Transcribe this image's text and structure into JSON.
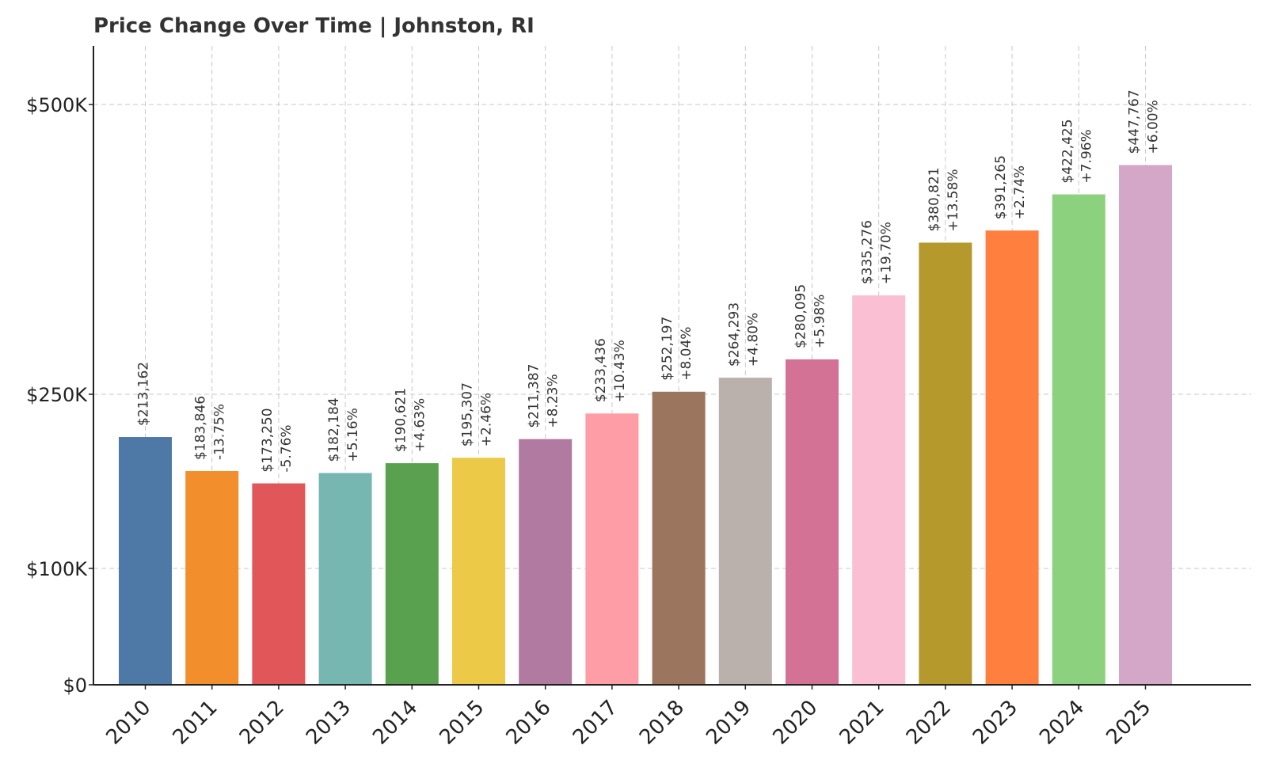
{
  "chart_data": {
    "type": "bar",
    "title": "Price Change Over Time | Johnston, RI",
    "xlabel": "",
    "ylabel": "",
    "categories": [
      "2010",
      "2011",
      "2012",
      "2013",
      "2014",
      "2015",
      "2016",
      "2017",
      "2018",
      "2019",
      "2020",
      "2021",
      "2022",
      "2023",
      "2024",
      "2025"
    ],
    "values": [
      213162,
      183846,
      173250,
      182184,
      190621,
      195307,
      211387,
      233436,
      252197,
      264293,
      280095,
      335276,
      380821,
      391265,
      422425,
      447767
    ],
    "value_labels": [
      "$213,162",
      "$183,846",
      "$173,250",
      "$182,184",
      "$190,621",
      "$195,307",
      "$211,387",
      "$233,436",
      "$252,197",
      "$264,293",
      "$280,095",
      "$335,276",
      "$380,821",
      "$391,265",
      "$422,425",
      "$447,767"
    ],
    "change_labels": [
      "",
      "-13.75%",
      "-5.76%",
      "+5.16%",
      "+4.63%",
      "+2.46%",
      "+8.23%",
      "+10.43%",
      "+8.04%",
      "+4.80%",
      "+5.98%",
      "+19.70%",
      "+13.58%",
      "+2.74%",
      "+7.96%",
      "+6.00%"
    ],
    "colors": [
      "#4e79a7",
      "#f28e2b",
      "#e15759",
      "#76b7b2",
      "#59a14f",
      "#edc948",
      "#b07aa1",
      "#ff9da7",
      "#9c755f",
      "#bab0ac",
      "#d37295",
      "#fabfd2",
      "#b6992d",
      "#ff7f3f",
      "#8cd17d",
      "#d4a6c8"
    ],
    "y_ticks": [
      {
        "value": 0,
        "label": "$0"
      },
      {
        "value": 100000,
        "label": "$100K"
      },
      {
        "value": 250000,
        "label": "$250K"
      },
      {
        "value": 500000,
        "label": "$500K"
      }
    ],
    "ylim": [
      0,
      500000
    ],
    "grid": true,
    "legend": "none"
  }
}
